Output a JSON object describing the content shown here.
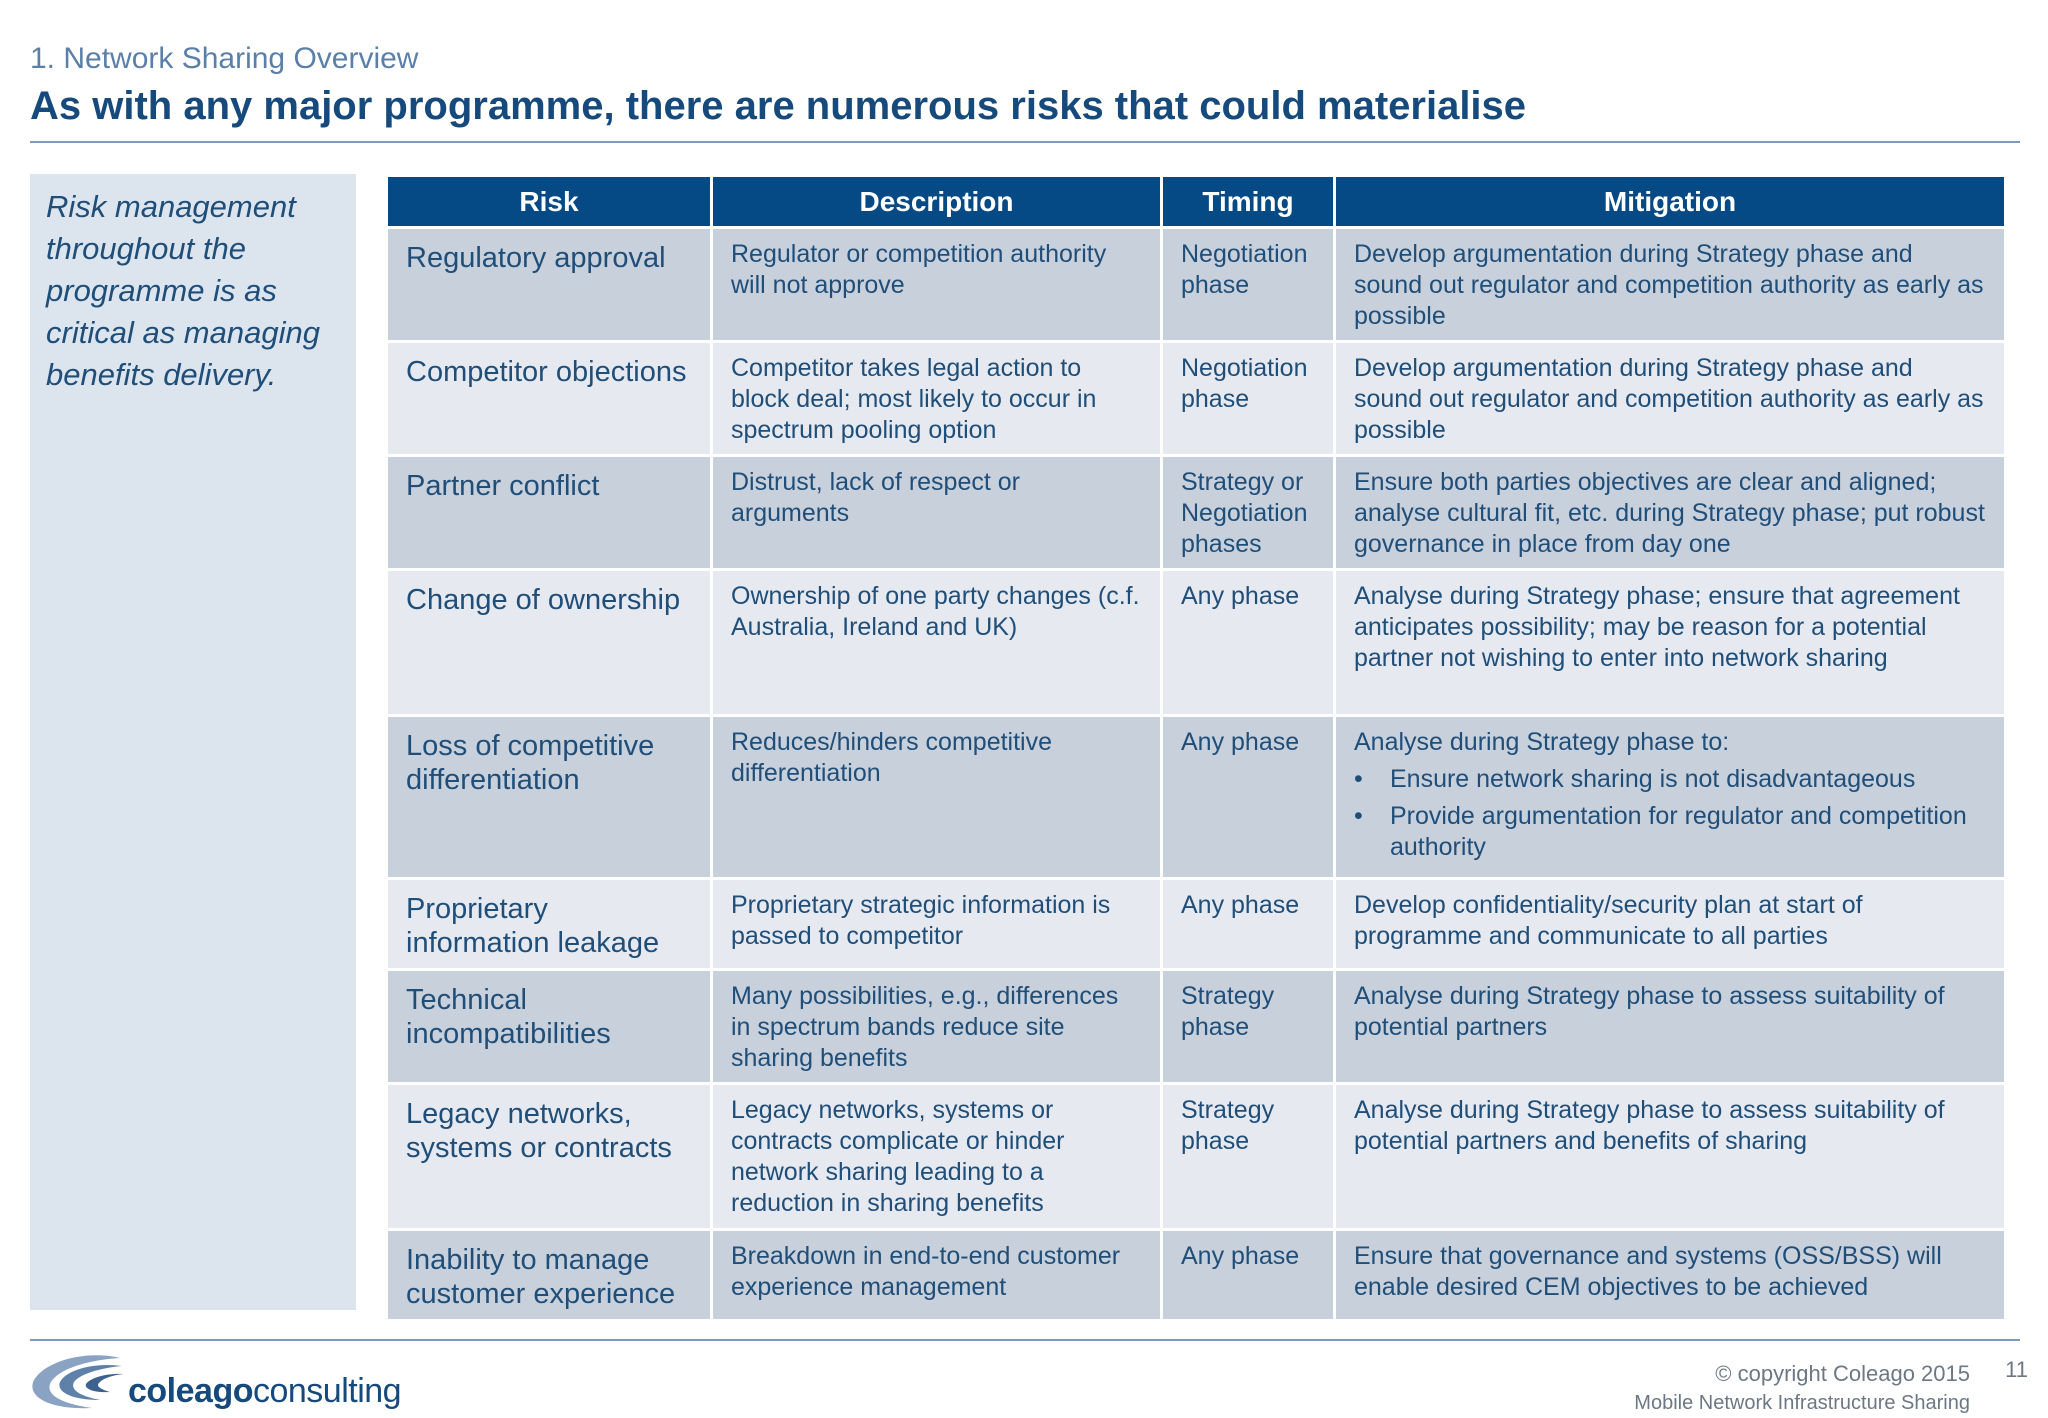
{
  "header": {
    "section": "1. Network Sharing Overview",
    "title": "As with any major programme, there are numerous risks that could materialise"
  },
  "sidebar": {
    "text": "Risk management throughout the programme is as critical as managing benefits delivery."
  },
  "table": {
    "columns": [
      "Risk",
      "Description",
      "Timing",
      "Mitigation"
    ],
    "rows": [
      {
        "risk": "Regulatory approval",
        "description": "Regulator or competition authority will not approve",
        "timing": "Negotiation phase",
        "mitigation": "Develop argumentation during Strategy phase and sound out regulator and competition authority as early as possible"
      },
      {
        "risk": "Competitor objections",
        "description": "Competitor takes legal action to block deal; most likely to occur in spectrum pooling option",
        "timing": "Negotiation phase",
        "mitigation": "Develop argumentation during Strategy phase and sound out regulator and competition authority as early as possible"
      },
      {
        "risk": "Partner conflict",
        "description": "Distrust, lack of respect or arguments",
        "timing": "Strategy or Negotiation phases",
        "mitigation": "Ensure both parties objectives are clear and aligned; analyse cultural fit, etc. during Strategy phase; put robust governance in place from day one"
      },
      {
        "risk": "Change of ownership",
        "description": "Ownership of one party changes (c.f. Australia, Ireland and UK)",
        "timing": "Any phase",
        "mitigation": "Analyse during Strategy phase; ensure that agreement anticipates possibility; may be reason for a potential partner not wishing to enter into network sharing"
      },
      {
        "risk": "Loss of competitive differentiation",
        "description": "Reduces/hinders competitive differentiation",
        "timing": "Any phase",
        "mitigation": "Analyse during Strategy phase to:",
        "bullets": [
          "Ensure network sharing is not disadvantageous",
          "Provide argumentation for regulator and competition authority"
        ]
      },
      {
        "risk": "Proprietary information leakage",
        "description": "Proprietary strategic information is passed to competitor",
        "timing": "Any phase",
        "mitigation": "Develop confidentiality/security plan at start of programme and communicate to all parties"
      },
      {
        "risk": "Technical incompatibilities",
        "description": "Many possibilities, e.g., differences in spectrum bands reduce site sharing benefits",
        "timing": "Strategy phase",
        "mitigation": "Analyse during Strategy phase to assess suitability of potential partners"
      },
      {
        "risk": "Legacy networks, systems or contracts",
        "description": "Legacy networks, systems or contracts complicate or hinder network sharing leading to a reduction in sharing benefits",
        "timing": "Strategy phase",
        "mitigation": "Analyse during Strategy phase to assess suitability of potential partners and benefits of sharing"
      },
      {
        "risk": "Inability to manage customer experience",
        "description": "Breakdown in end-to-end customer experience management",
        "timing": "Any phase",
        "mitigation": "Ensure that governance and systems (OSS/BSS) will enable desired CEM objectives to be achieved"
      }
    ],
    "bullet_glyph": "•"
  },
  "footer": {
    "logo_bold": "coleago",
    "logo_light": "consulting",
    "copyright": "© copyright Coleago 2015",
    "document": "Mobile Network Infrastructure Sharing",
    "page_number": "11"
  },
  "colors": {
    "header_fill": "#054a85",
    "row_dark": "#c8d0dc",
    "row_light": "#e6e9ef",
    "text": "#1f4e79",
    "sidebar_fill": "#dce4ee"
  }
}
